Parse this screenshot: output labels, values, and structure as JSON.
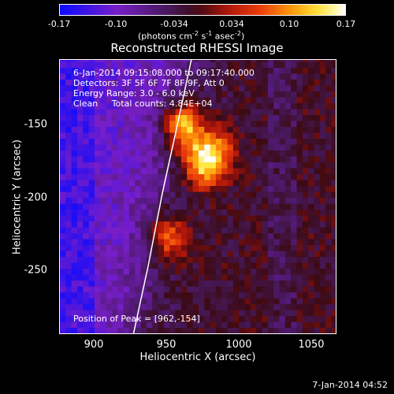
{
  "colorbar": {
    "ticks": [
      "-0.17",
      "-0.10",
      "-0.034",
      "0.034",
      "0.10",
      "0.17"
    ],
    "tick_values": [
      -0.17,
      -0.1,
      -0.034,
      0.034,
      0.1,
      0.17
    ],
    "range": [
      -0.17,
      0.17
    ],
    "units_text": "(photons cm",
    "units_exp1": "-2",
    "units_mid1": " s",
    "units_exp2": "-1",
    "units_mid2": " asec",
    "units_exp3": "-2",
    "units_end": ")"
  },
  "title": "Reconstructed RHESSI Image",
  "info": {
    "time_range": "6-Jan-2014 09:15:08.000 to 09:17:40.000",
    "detectors": "Detectors: 3F 5F 6F 7F 8F 9F, Att 0",
    "energy": "Energy Range: 3.0 - 6.0 keV",
    "clean": "Clean     Total counts: 4.84E+04",
    "peak": "Position of Peak = [962,-154]"
  },
  "timestamp": "7-Jan-2014 04:52",
  "chart_data": {
    "type": "heatmap",
    "title": "Reconstructed RHESSI Image",
    "xlabel": "Heliocentric X (arcsec)",
    "ylabel": "Heliocentric Y (arcsec)",
    "xticks": [
      "900",
      "950",
      "1000",
      "1050"
    ],
    "xtick_values": [
      900,
      950,
      1000,
      1050
    ],
    "yticks": [
      "-150",
      "-200",
      "-250"
    ],
    "ytick_values": [
      -150,
      -200,
      -250
    ],
    "xlim": [
      877,
      1068
    ],
    "ylim": [
      -295,
      -110
    ],
    "colormap": "heat (blue-purple-red-yellow-white)",
    "sources": [
      {
        "x": 962,
        "y": -154,
        "peak": 0.17
      },
      {
        "x": 975,
        "y": -180,
        "peak": 0.14
      },
      {
        "x": 952,
        "y": -230,
        "peak": 0.11
      },
      {
        "x": 985,
        "y": -172,
        "peak": 0.1
      }
    ],
    "limb_curve": [
      [
        928,
        -295
      ],
      [
        938,
        -250
      ],
      [
        948,
        -200
      ],
      [
        957,
        -160
      ],
      [
        968,
        -110
      ]
    ],
    "peak_position": [
      962,
      -154
    ]
  }
}
